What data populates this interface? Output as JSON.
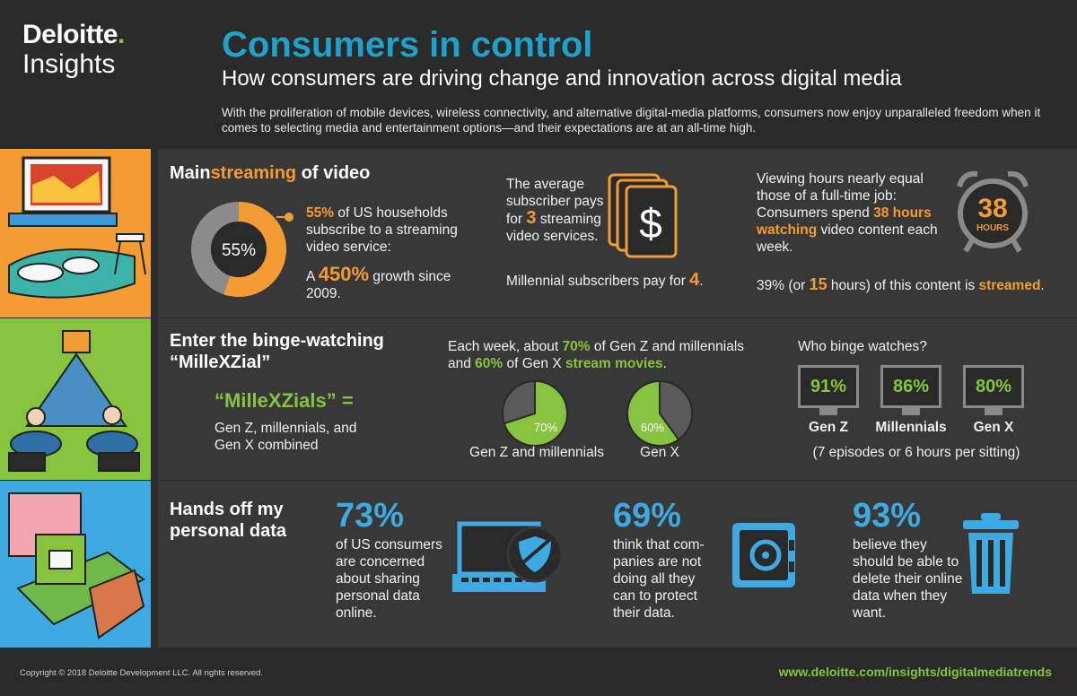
{
  "brand": {
    "name": "Deloitte",
    "dot": ".",
    "sub": "Insights"
  },
  "header": {
    "title": "Consumers in control",
    "subtitle": "How consumers are driving change and innovation across digital media",
    "intro": "With the proliferation of mobile devices, wireless connectivity, and alternative digital-media platforms, consumers now enjoy unparalleled freedom when it comes to selecting media and entertainment options—and their expectations are at an all-time high."
  },
  "section1": {
    "title_pre": "Main",
    "title_hl": "streaming",
    "title_post": " of video",
    "donut_label": "55%",
    "donut_fraction": 0.55,
    "stat1_hl": "55%",
    "stat1_text": " of US households subscribe to a streaming video service:",
    "growth_pre": "A ",
    "growth_hl": "450%",
    "growth_post": " growth since 2009.",
    "avg_pre": "The average subscriber pays for ",
    "avg_hl": "3",
    "avg_post": " streaming video services.",
    "dollar": "$",
    "mill_pre": "Millennial subscribers pay for ",
    "mill_hl": "4",
    "mill_post": ".",
    "hours_pre": "Viewing hours nearly equal those of a full-time job: Consumers spend ",
    "hours_hl": "38 hours watching",
    "hours_post": " video content each week.",
    "clock_num": "38",
    "clock_unit": "HOURS",
    "stream_pre": "39% (or ",
    "stream_hl": "15",
    "stream_mid": " hours) of this content is ",
    "stream_hl2": "streamed",
    "stream_post": "."
  },
  "section2": {
    "title": "Enter the binge-watching “MilleXZial”",
    "def_title": "“MilleXZials” =",
    "def_text": "Gen Z, millennials, and Gen X combined",
    "weekly_pre": "Each week, about ",
    "weekly_hl1": "70%",
    "weekly_mid1": " of Gen Z and millennials and ",
    "weekly_hl2": "60%",
    "weekly_mid2": " of Gen X ",
    "weekly_hl3": "stream movies",
    "weekly_post": ".",
    "pies": [
      {
        "label": "Gen Z and millennials",
        "value_label": "70%",
        "value": 0.7
      },
      {
        "label": "Gen X",
        "value_label": "60%",
        "value": 0.6
      }
    ],
    "binge_q": "Who binge watches?",
    "binge": [
      {
        "value": "91%",
        "label": "Gen Z"
      },
      {
        "value": "86%",
        "label": "Millennials"
      },
      {
        "value": "80%",
        "label": "Gen X"
      }
    ],
    "binge_note": "(7 episodes or 6 hours per sitting)"
  },
  "section3": {
    "title": "Hands off my personal data",
    "stats": [
      {
        "value": "73%",
        "text": "of US consumers are concerned about sharing personal data online."
      },
      {
        "value": "69%",
        "text": "think that com-panies are not doing all they can to protect their data."
      },
      {
        "value": "93%",
        "text": "believe they should be able to delete their online data when they want."
      }
    ]
  },
  "footer": {
    "copyright": "Copyright © 2018 Deloitte Development LLC. All rights reserved.",
    "url": "www.deloitte.com/insights/digitalmediatrends"
  },
  "colors": {
    "orange": "#f39c34",
    "green": "#86c440",
    "blue": "#3fa9e1",
    "teal": "#1ea2c9",
    "bg": "#2b2a2b",
    "panel": "#393839"
  }
}
